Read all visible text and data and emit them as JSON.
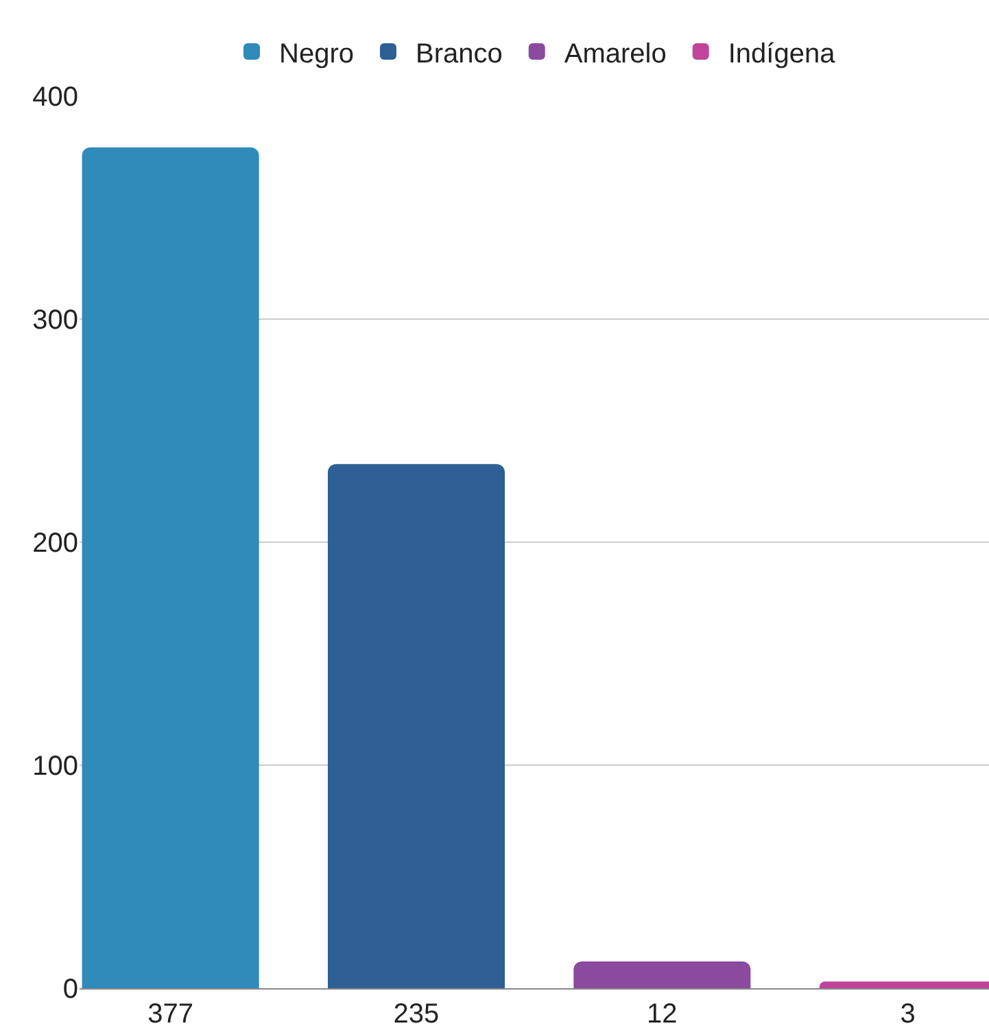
{
  "chart_data": {
    "type": "bar",
    "categories": [
      "377",
      "235",
      "12",
      "3"
    ],
    "series": [
      {
        "name": "Negro",
        "color": "#2e8bba",
        "values": [
          377,
          null,
          null,
          null
        ]
      },
      {
        "name": "Branco",
        "color": "#2e6096",
        "values": [
          null,
          235,
          null,
          null
        ]
      },
      {
        "name": "Amarelo",
        "color": "#8a4a9e",
        "values": [
          null,
          null,
          12,
          null
        ]
      },
      {
        "name": "Indígena",
        "color": "#c0449a",
        "values": [
          null,
          null,
          null,
          3
        ]
      }
    ],
    "ylim": [
      0,
      400
    ],
    "yticks": [
      0,
      100,
      200,
      300,
      400
    ],
    "grid": "y",
    "legend": "top"
  }
}
